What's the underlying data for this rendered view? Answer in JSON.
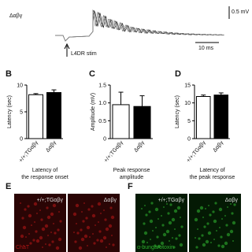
{
  "trace": {
    "genotype": "Δαβγ",
    "scale_amplitude": "0.5 mV",
    "scale_time": "10 ms",
    "stimulus": "L4DR stim"
  },
  "panel_labels": [
    "B",
    "C",
    "D",
    "E",
    "F"
  ],
  "chart_data": [
    {
      "type": "bar",
      "ylabel": "Latency (sec)",
      "categories": [
        "+/+;TGαβγ",
        "Δαβγ"
      ],
      "values": [
        8.2,
        8.6
      ],
      "errors": [
        0.2,
        0.5
      ],
      "colors": [
        "#ffffff",
        "#000000"
      ],
      "ylim": [
        0,
        10
      ],
      "yticks": [
        0,
        5,
        10
      ],
      "caption": [
        "Latency of",
        "the response onset"
      ]
    },
    {
      "type": "bar",
      "ylabel": "Amplitude (mV)",
      "categories": [
        "+/+;TGαβγ",
        "Δαβγ"
      ],
      "values": [
        0.95,
        0.9
      ],
      "errors": [
        0.35,
        0.3
      ],
      "colors": [
        "#ffffff",
        "#000000"
      ],
      "ylim": [
        0,
        1.5
      ],
      "yticks": [
        0,
        0.5,
        {
          "value": 1,
          "label": "1.0"
        },
        1.5
      ],
      "caption": [
        "Peak response",
        "amplitude"
      ]
    },
    {
      "type": "bar",
      "ylabel": "Latency (sec)",
      "categories": [
        "+/+;TGαβγ",
        "Δαβγ"
      ],
      "values": [
        11.8,
        12.2
      ],
      "errors": [
        0.4,
        0.6
      ],
      "colors": [
        "#ffffff",
        "#000000"
      ],
      "ylim": [
        0,
        15
      ],
      "yticks": [
        0,
        5,
        10,
        15
      ],
      "caption": [
        "Latency of",
        "the peak response"
      ]
    }
  ],
  "images": [
    {
      "genotypes": [
        "+/+;TGαβγ",
        "Δαβγ"
      ],
      "stain": "ChaT"
    },
    {
      "genotypes": [
        "+/+;TGαβγ",
        "Δαβγ"
      ],
      "stain": "α-bungarotoxin"
    }
  ]
}
